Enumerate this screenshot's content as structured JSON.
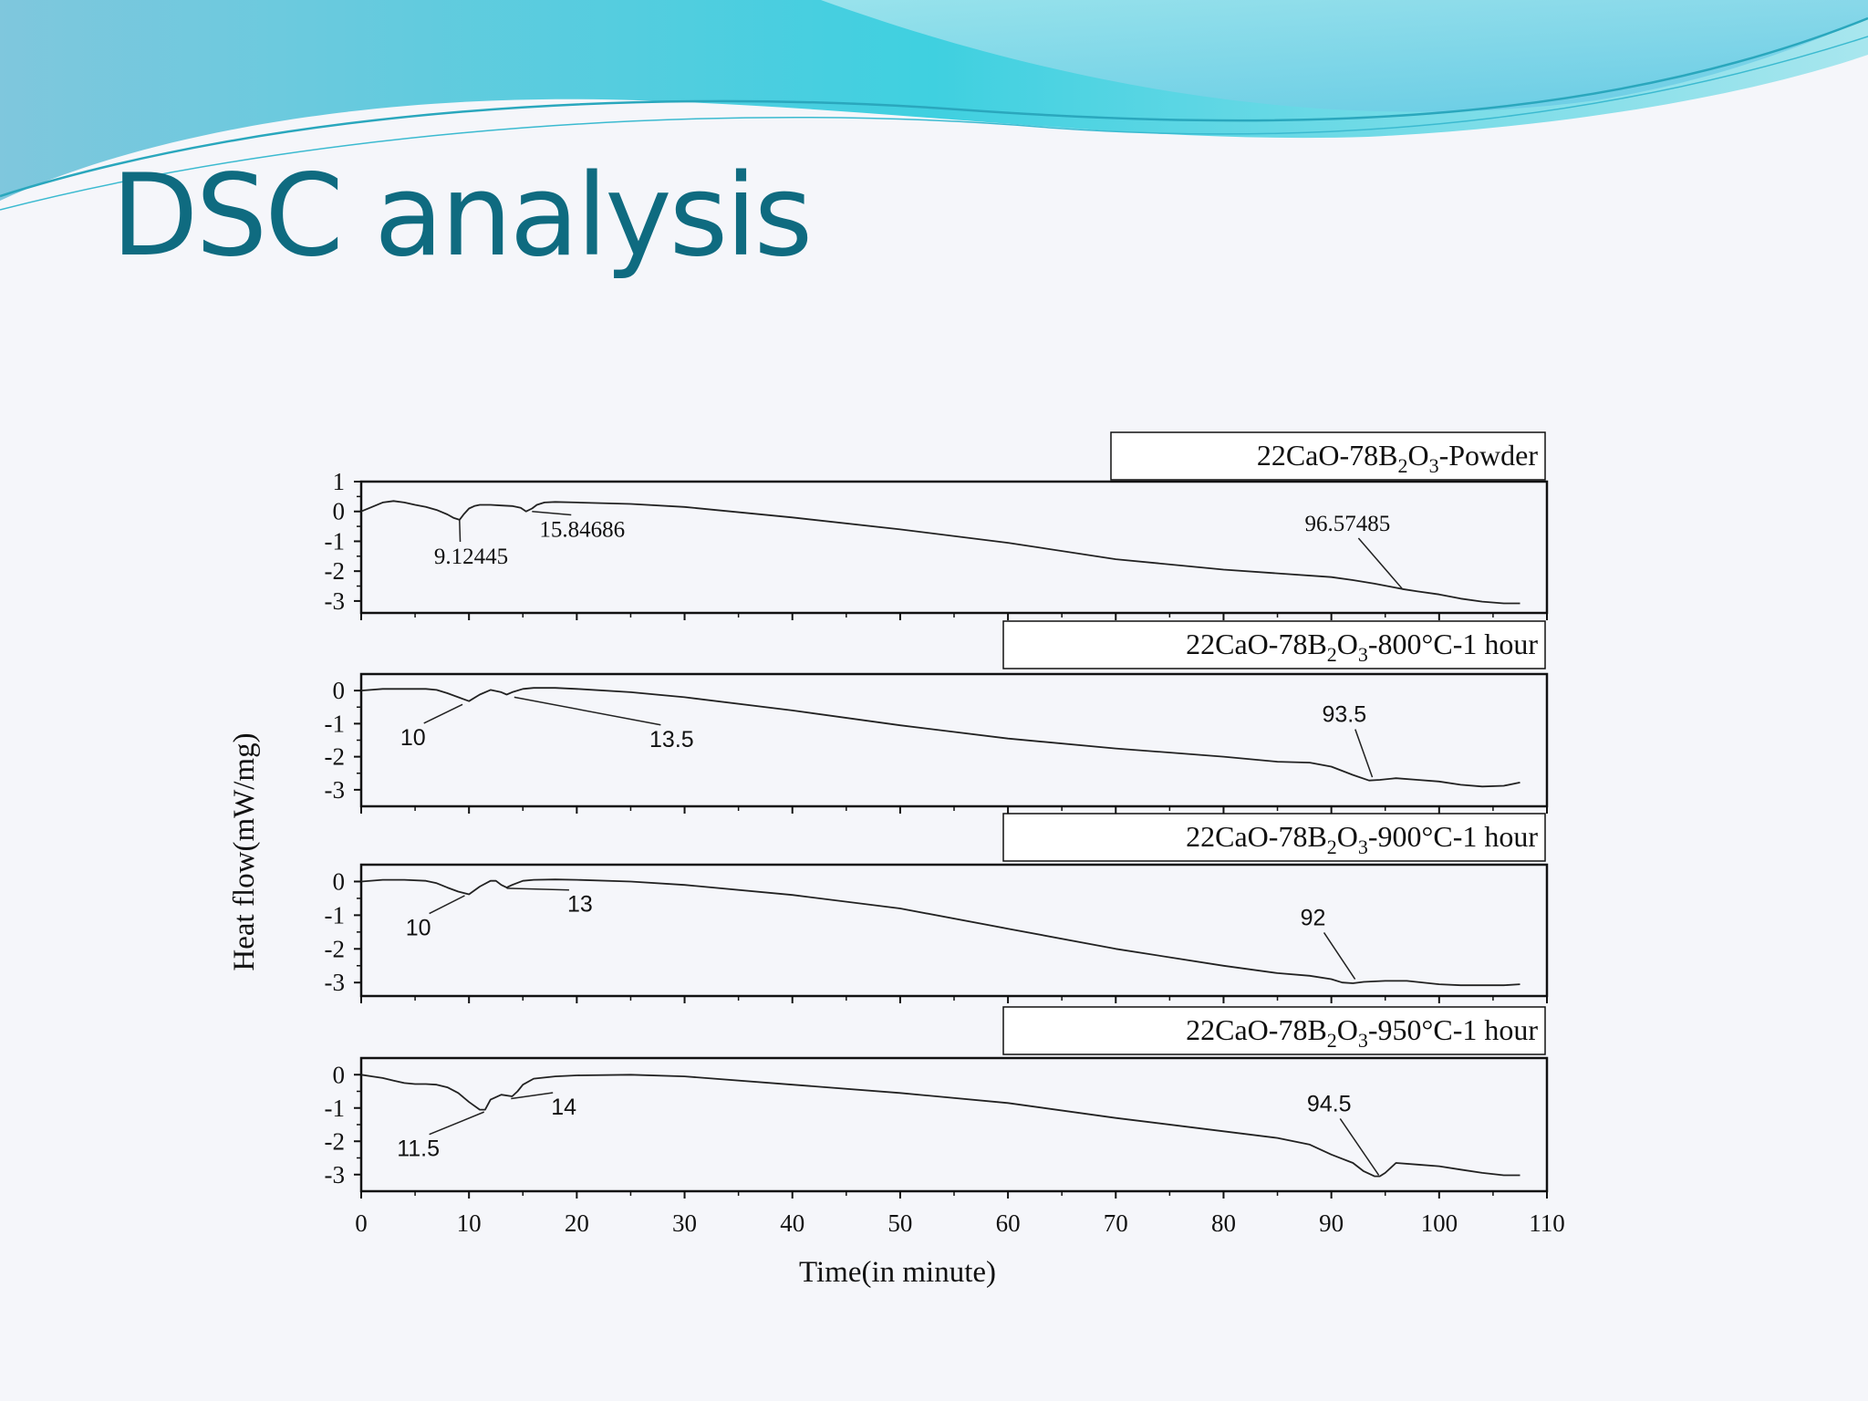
{
  "slide": {
    "title": "DSC analysis",
    "title_color": "#0f6b80",
    "background_color": "#f5f6fa",
    "wave_colors": [
      "#7fc7dd",
      "#3fd0e0",
      "#a8e6ee"
    ]
  },
  "chart_data": {
    "type": "line",
    "xlabel": "Time(in minute)",
    "ylabel": "Heat flow(mW/mg)",
    "xlim": [
      0,
      110
    ],
    "xticks": [
      0,
      10,
      20,
      30,
      40,
      50,
      60,
      70,
      80,
      90,
      100,
      110
    ],
    "panels": [
      {
        "name": "powder",
        "legend_main": "22CaO-78B",
        "legend_sub1": "2",
        "legend_mid": "O",
        "legend_sub2": "3",
        "legend_tail": "-Powder",
        "ylim": [
          -3.4,
          1
        ],
        "yticks": [
          1,
          0,
          -1,
          -2,
          -3
        ],
        "series": [
          {
            "x": [
              0,
              1,
              2,
              3,
              4,
              5,
              6,
              7,
              8,
              8.6,
              9.12,
              9.5,
              10,
              10.5,
              11,
              12,
              13,
              14,
              14.8,
              15.3,
              15.85,
              16.3,
              17,
              18,
              20,
              25,
              30,
              40,
              50,
              60,
              70,
              80,
              90,
              92,
              94,
              95.5,
              96.6,
              98,
              100,
              102,
              104,
              106,
              107.5
            ],
            "y": [
              0,
              0.15,
              0.3,
              0.35,
              0.3,
              0.22,
              0.15,
              0.05,
              -0.1,
              -0.22,
              -0.28,
              -0.1,
              0.1,
              0.18,
              0.22,
              0.22,
              0.2,
              0.18,
              0.12,
              0.0,
              0.1,
              0.22,
              0.3,
              0.32,
              0.3,
              0.25,
              0.15,
              -0.2,
              -0.6,
              -1.05,
              -1.6,
              -1.95,
              -2.2,
              -2.3,
              -2.42,
              -2.52,
              -2.6,
              -2.68,
              -2.78,
              -2.92,
              -3.02,
              -3.08,
              -3.08
            ]
          }
        ],
        "annotations": [
          {
            "label": "9.12445",
            "x": 9.12,
            "y": -0.28,
            "tx": 10.2,
            "ty": -1.75
          },
          {
            "label": "15.84686",
            "x": 15.85,
            "y": 0.0,
            "tx": 20.5,
            "ty": -0.85
          },
          {
            "label": "96.57485",
            "x": 96.6,
            "y": -2.6,
            "tx": 91.5,
            "ty": -0.65
          }
        ]
      },
      {
        "name": "800C",
        "legend_main": "22CaO-78B",
        "legend_sub1": "2",
        "legend_mid": "O",
        "legend_sub2": "3",
        "legend_tail": "-800°C-1 hour",
        "ylim": [
          -3.5,
          0.5
        ],
        "yticks": [
          0,
          -1,
          -2,
          -3
        ],
        "series": [
          {
            "x": [
              0,
              2,
              4,
              6,
              7,
              8,
              9,
              10,
              11,
              12,
              13,
              13.5,
              14,
              15,
              16,
              18,
              20,
              25,
              30,
              40,
              50,
              60,
              70,
              80,
              85,
              88,
              90,
              92,
              93.5,
              94.5,
              96,
              98,
              100,
              102,
              104,
              106,
              107.5
            ],
            "y": [
              0,
              0.05,
              0.05,
              0.05,
              0.02,
              -0.08,
              -0.2,
              -0.32,
              -0.12,
              0.02,
              -0.05,
              -0.12,
              -0.05,
              0.05,
              0.08,
              0.08,
              0.05,
              -0.05,
              -0.2,
              -0.6,
              -1.05,
              -1.45,
              -1.75,
              -2.0,
              -2.15,
              -2.18,
              -2.3,
              -2.55,
              -2.72,
              -2.7,
              -2.65,
              -2.7,
              -2.75,
              -2.85,
              -2.9,
              -2.88,
              -2.78
            ]
          }
        ],
        "annotations": [
          {
            "label": "10",
            "x": 9.4,
            "y": -0.42,
            "tx": 4.8,
            "ty": -1.65
          },
          {
            "label": "13.5",
            "x": 14.2,
            "y": -0.2,
            "tx": 28.8,
            "ty": -1.7
          },
          {
            "label": "93.5",
            "x": 93.8,
            "y": -2.62,
            "tx": 91.2,
            "ty": -0.95
          }
        ]
      },
      {
        "name": "900C",
        "legend_main": "22CaO-78B",
        "legend_sub1": "2",
        "legend_mid": "O",
        "legend_sub2": "3",
        "legend_tail": "-900°C-1 hour",
        "ylim": [
          -3.4,
          0.5
        ],
        "yticks": [
          0,
          -1,
          -2,
          -3
        ],
        "series": [
          {
            "x": [
              0,
              2,
              4,
              6,
              7,
              8,
              9,
              10,
              11,
              12,
              12.5,
              13,
              13.5,
              14,
              15,
              16,
              18,
              20,
              25,
              30,
              40,
              50,
              60,
              70,
              80,
              85,
              88,
              90,
              91,
              92,
              93,
              95,
              97,
              100,
              102,
              104,
              106,
              107.5
            ],
            "y": [
              0,
              0.05,
              0.05,
              0.02,
              -0.05,
              -0.18,
              -0.3,
              -0.38,
              -0.15,
              0.02,
              0.02,
              -0.1,
              -0.18,
              -0.1,
              0.02,
              0.05,
              0.06,
              0.05,
              0.0,
              -0.1,
              -0.4,
              -0.8,
              -1.4,
              -2.0,
              -2.5,
              -2.72,
              -2.8,
              -2.9,
              -3.0,
              -3.02,
              -2.98,
              -2.95,
              -2.95,
              -3.05,
              -3.08,
              -3.08,
              -3.08,
              -3.05
            ]
          }
        ],
        "annotations": [
          {
            "label": "10",
            "x": 9.6,
            "y": -0.42,
            "tx": 5.3,
            "ty": -1.6
          },
          {
            "label": "13",
            "x": 13.5,
            "y": -0.2,
            "tx": 20.3,
            "ty": -0.9
          },
          {
            "label": "92",
            "x": 92.2,
            "y": -2.9,
            "tx": 88.3,
            "ty": -1.3
          }
        ]
      },
      {
        "name": "950C",
        "legend_main": "22CaO-78B",
        "legend_sub1": "2",
        "legend_mid": "O",
        "legend_sub2": "3",
        "legend_tail": "-950°C-1 hour",
        "ylim": [
          -3.5,
          0.5
        ],
        "yticks": [
          0,
          -1,
          -2,
          -3
        ],
        "series": [
          {
            "x": [
              0,
              1,
              2,
              3,
              4,
              5,
              6,
              7,
              8,
              9,
              10,
              11,
              11.5,
              12,
              13,
              14,
              14.5,
              15,
              16,
              18,
              20,
              25,
              30,
              40,
              50,
              60,
              70,
              80,
              85,
              88,
              90,
              92,
              93,
              94,
              94.5,
              95,
              96,
              98,
              100,
              102,
              104,
              106,
              107.5
            ],
            "y": [
              0,
              -0.05,
              -0.1,
              -0.18,
              -0.25,
              -0.28,
              -0.28,
              -0.3,
              -0.38,
              -0.55,
              -0.82,
              -1.05,
              -1.05,
              -0.75,
              -0.6,
              -0.65,
              -0.5,
              -0.3,
              -0.12,
              -0.05,
              -0.02,
              0.0,
              -0.05,
              -0.3,
              -0.55,
              -0.85,
              -1.3,
              -1.7,
              -1.9,
              -2.1,
              -2.4,
              -2.65,
              -2.9,
              -3.05,
              -3.05,
              -2.95,
              -2.65,
              -2.7,
              -2.75,
              -2.85,
              -2.95,
              -3.02,
              -3.02
            ]
          }
        ],
        "annotations": [
          {
            "label": "11.5",
            "x": 11.4,
            "y": -1.12,
            "tx": 5.3,
            "ty": -2.45
          },
          {
            "label": "14",
            "x": 13.9,
            "y": -0.72,
            "tx": 18.8,
            "ty": -1.2
          },
          {
            "label": "94.5",
            "x": 94.4,
            "y": -3.02,
            "tx": 89.8,
            "ty": -1.1
          }
        ]
      }
    ]
  }
}
